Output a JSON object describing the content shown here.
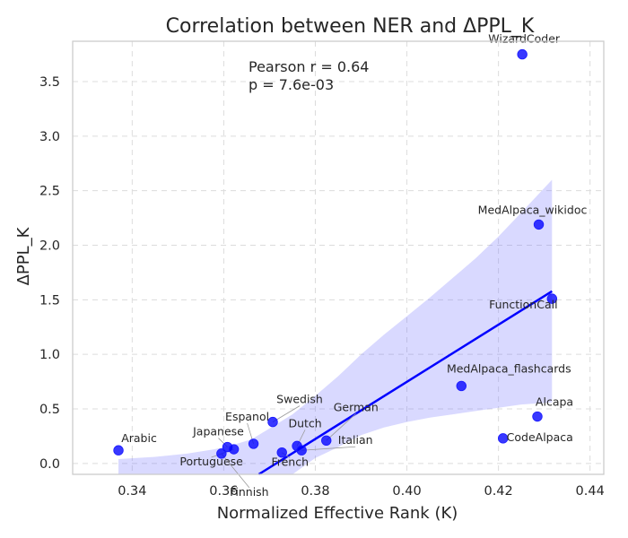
{
  "chart_data": {
    "type": "scatter",
    "title": "Correlation between NER and ΔPPL_K",
    "xlabel": "Normalized Effective Rank (K)",
    "ylabel": "ΔPPL_K",
    "xlim": [
      0.327,
      0.443
    ],
    "ylim": [
      -0.1,
      3.87
    ],
    "xticks": [
      0.34,
      0.36,
      0.38,
      0.4,
      0.42,
      0.44
    ],
    "xtick_labels": [
      "0.34",
      "0.36",
      "0.38",
      "0.40",
      "0.42",
      "0.44"
    ],
    "yticks": [
      0.0,
      0.5,
      1.0,
      1.5,
      2.0,
      2.5,
      3.0,
      3.5
    ],
    "ytick_labels": [
      "0.0",
      "0.5",
      "1.0",
      "1.5",
      "2.0",
      "2.5",
      "3.0",
      "3.5"
    ],
    "grid": true,
    "stats": {
      "pearson": "Pearson r = 0.64",
      "p_value": "p = 7.6e-03"
    },
    "regression": {
      "x_range": [
        0.337,
        0.4317
      ],
      "slope": 26.2,
      "intercept": -9.732,
      "confidence_band": {
        "x": [
          0.337,
          0.345,
          0.352,
          0.358,
          0.362,
          0.366,
          0.37,
          0.375,
          0.38,
          0.385,
          0.39,
          0.395,
          0.4,
          0.405,
          0.41,
          0.415,
          0.42,
          0.425,
          0.4317
        ],
        "upper": [
          0.04,
          0.06,
          0.09,
          0.13,
          0.17,
          0.22,
          0.32,
          0.45,
          0.62,
          0.8,
          1.0,
          1.18,
          1.35,
          1.52,
          1.7,
          1.88,
          2.08,
          2.3,
          2.6
        ],
        "lower": [
          -0.1,
          -0.1,
          -0.1,
          -0.1,
          -0.1,
          -0.1,
          -0.1,
          -0.1,
          0.05,
          0.15,
          0.26,
          0.33,
          0.38,
          0.42,
          0.45,
          0.48,
          0.51,
          0.54,
          0.56
        ]
      }
    },
    "points": [
      {
        "label": "WizardCoder",
        "x": 0.4252,
        "y": 3.75
      },
      {
        "label": "MedAlpaca_wikidoc",
        "x": 0.4288,
        "y": 2.19
      },
      {
        "label": "FunctionCall",
        "x": 0.4317,
        "y": 1.51
      },
      {
        "label": "MedAlpaca_flashcards",
        "x": 0.4119,
        "y": 0.71
      },
      {
        "label": "Alcapa",
        "x": 0.4285,
        "y": 0.43
      },
      {
        "label": "CodeAlpaca",
        "x": 0.421,
        "y": 0.23
      },
      {
        "label": "Arabic",
        "x": 0.337,
        "y": 0.12
      },
      {
        "label": "Swedish",
        "x": 0.3707,
        "y": 0.38
      },
      {
        "label": "Espanol",
        "x": 0.3665,
        "y": 0.18
      },
      {
        "label": "Japanese",
        "x": 0.3608,
        "y": 0.15
      },
      {
        "label": "German",
        "x": 0.3824,
        "y": 0.21
      },
      {
        "label": "Dutch",
        "x": 0.376,
        "y": 0.16
      },
      {
        "label": "Italian",
        "x": 0.377,
        "y": 0.12
      },
      {
        "label": "French",
        "x": 0.3727,
        "y": 0.1
      },
      {
        "label": "Portuguese",
        "x": 0.3622,
        "y": 0.13
      },
      {
        "label": "Finnish",
        "x": 0.3595,
        "y": 0.09
      }
    ]
  }
}
